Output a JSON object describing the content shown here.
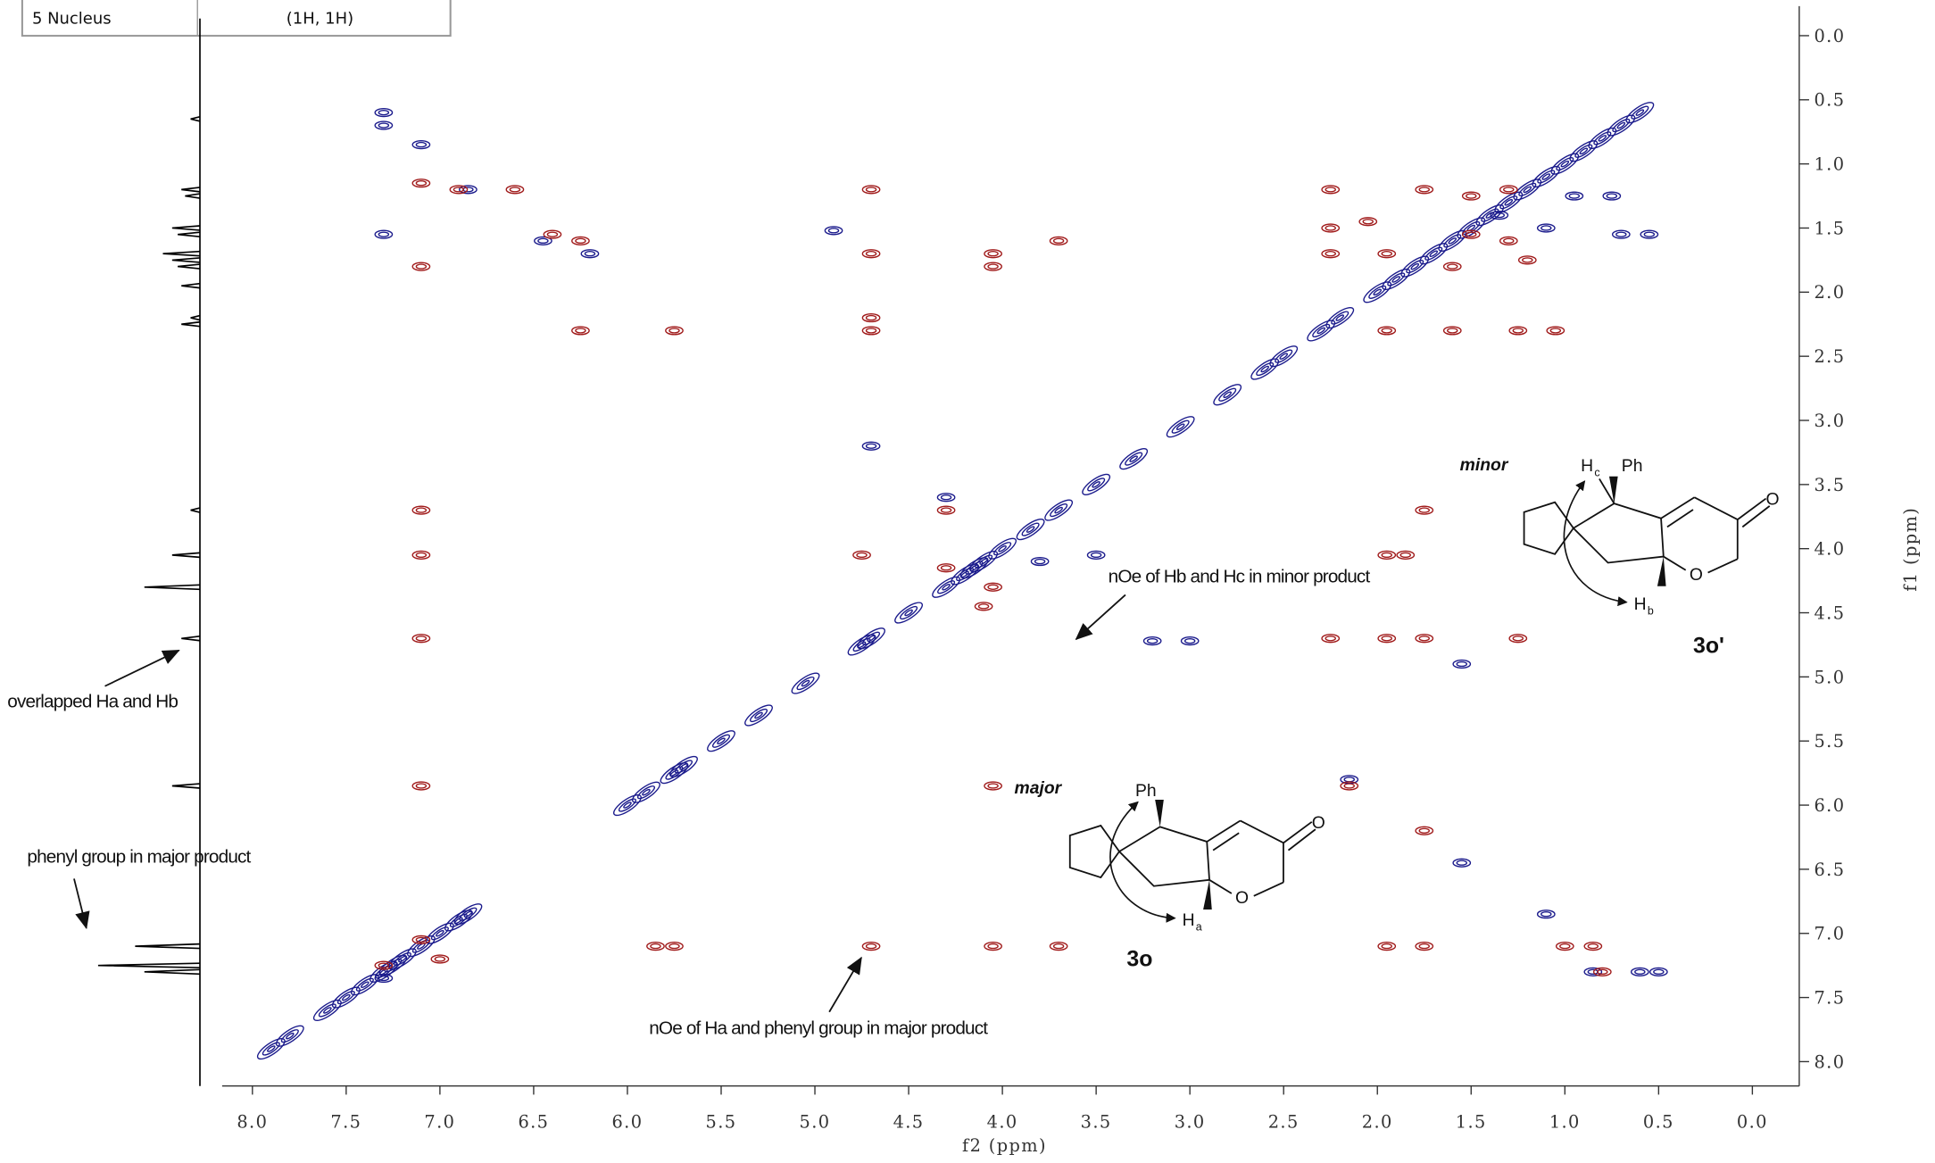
{
  "table": {
    "rows": [
      [
        "5 Nucleus",
        "(1H, 1H)"
      ]
    ]
  },
  "chart_data": {
    "type": "nmr2d",
    "xlabel": "f2 (ppm)",
    "ylabel": "f1 (ppm)",
    "xlim": [
      8.28,
      -0.25
    ],
    "ylim": [
      -0.23,
      8.19
    ],
    "xticks": [
      {
        "value": 8,
        "label": "8.0"
      },
      {
        "value": 7.5,
        "label": "7.5"
      },
      {
        "value": 7,
        "label": "7.0"
      },
      {
        "value": 6.5,
        "label": "6.5"
      },
      {
        "value": 6,
        "label": "6.0"
      },
      {
        "value": 5.5,
        "label": "5.5"
      },
      {
        "value": 5,
        "label": "5.0"
      },
      {
        "value": 4.5,
        "label": "4.5"
      },
      {
        "value": 4,
        "label": "4.0"
      },
      {
        "value": 3.5,
        "label": "3.5"
      },
      {
        "value": 3,
        "label": "3.0"
      },
      {
        "value": 2.5,
        "label": "2.5"
      },
      {
        "value": 2,
        "label": "2.0"
      },
      {
        "value": 1.5,
        "label": "1.5"
      },
      {
        "value": 1,
        "label": "1.0"
      },
      {
        "value": 0.5,
        "label": "0.5"
      },
      {
        "value": 0,
        "label": "0.0"
      }
    ],
    "yticks": [
      {
        "value": 0,
        "label": "0.0"
      },
      {
        "value": 0.5,
        "label": "0.5"
      },
      {
        "value": 1,
        "label": "1.0"
      },
      {
        "value": 1.5,
        "label": "1.5"
      },
      {
        "value": 2,
        "label": "2.0"
      },
      {
        "value": 2.5,
        "label": "2.5"
      },
      {
        "value": 3,
        "label": "3.0"
      },
      {
        "value": 3.5,
        "label": "3.5"
      },
      {
        "value": 4,
        "label": "4.0"
      },
      {
        "value": 4.5,
        "label": "4.5"
      },
      {
        "value": 5,
        "label": "5.0"
      },
      {
        "value": 5.5,
        "label": "5.5"
      },
      {
        "value": 6,
        "label": "6.0"
      },
      {
        "value": 6.5,
        "label": "6.5"
      },
      {
        "value": 7,
        "label": "7.0"
      },
      {
        "value": 7.5,
        "label": "7.5"
      },
      {
        "value": 8,
        "label": "8.0"
      }
    ],
    "series": [
      {
        "color": "#1b1b8c",
        "x": [
          7.9,
          7.8,
          7.6,
          7.5,
          7.4,
          7.3,
          7.25,
          7.2,
          7.1,
          7.0,
          6.9,
          6.85,
          6.0,
          5.9,
          5.75,
          5.7,
          5.5,
          5.3,
          5.05,
          4.75,
          4.7,
          4.5,
          4.3,
          4.2,
          4.15,
          4.1,
          4.0,
          3.85,
          3.7,
          3.5,
          3.3,
          3.05,
          2.8,
          2.6,
          2.5,
          2.3,
          2.2,
          2.0,
          1.9,
          1.8,
          1.7,
          1.6,
          1.5,
          1.4,
          1.3,
          1.2,
          1.1,
          1.0,
          0.9,
          0.8,
          0.7,
          0.6,
          7.3,
          7.3,
          7.1,
          6.85,
          6.45,
          6.2,
          4.9,
          7.3,
          4.7,
          1.55,
          1.55,
          0.85,
          0.6,
          0.5,
          1.1,
          2.15,
          3.2,
          3.0,
          0.7,
          0.55,
          0.95,
          0.75,
          3.8,
          3.5,
          4.3,
          7.3,
          1.35,
          1.1
        ],
        "y": [
          7.9,
          7.8,
          7.6,
          7.5,
          7.4,
          7.3,
          7.25,
          7.2,
          7.1,
          7.0,
          6.9,
          6.85,
          6.0,
          5.9,
          5.75,
          5.7,
          5.5,
          5.3,
          5.05,
          4.75,
          4.7,
          4.5,
          4.3,
          4.2,
          4.15,
          4.1,
          4.0,
          3.85,
          3.7,
          3.5,
          3.3,
          3.05,
          2.8,
          2.6,
          2.5,
          2.3,
          2.2,
          2.0,
          1.9,
          1.8,
          1.7,
          1.6,
          1.5,
          1.4,
          1.3,
          1.2,
          1.1,
          1.0,
          0.9,
          0.8,
          0.7,
          0.6,
          0.6,
          0.7,
          0.85,
          1.2,
          1.6,
          1.7,
          1.52,
          1.55,
          3.2,
          4.9,
          6.45,
          7.3,
          7.3,
          7.3,
          6.85,
          5.8,
          4.72,
          4.72,
          1.55,
          1.55,
          1.25,
          1.25,
          4.1,
          4.05,
          3.6,
          7.35,
          1.4,
          1.5
        ]
      },
      {
        "color": "#a01a1a",
        "x": [
          7.1,
          7.1,
          7.1,
          7.1,
          7.1,
          7.1,
          6.9,
          6.6,
          6.4,
          6.25,
          6.25,
          5.75,
          4.7,
          4.7,
          4.7,
          4.7,
          4.7,
          4.05,
          4.05,
          4.05,
          4.05,
          3.7,
          3.7,
          5.85,
          5.75,
          4.75,
          4.3,
          4.3,
          4.05,
          4.1,
          2.25,
          2.25,
          2.25,
          2.25,
          1.95,
          1.75,
          1.25,
          1.95,
          1.85,
          1.75,
          1.95,
          1.75,
          1.0,
          0.85,
          0.8,
          1.05,
          1.25,
          1.6,
          1.95,
          1.3,
          1.3,
          1.5,
          1.5,
          1.75,
          1.6,
          1.2,
          2.15,
          7.1,
          7.3,
          7.0,
          1.75,
          2.05,
          1.95
        ],
        "y": [
          1.15,
          1.8,
          3.7,
          4.05,
          4.7,
          5.85,
          1.2,
          1.2,
          1.55,
          1.6,
          2.3,
          2.3,
          1.2,
          1.7,
          2.2,
          2.3,
          7.1,
          1.7,
          1.8,
          5.85,
          7.1,
          1.6,
          7.1,
          7.1,
          7.1,
          4.05,
          4.15,
          3.7,
          4.3,
          4.45,
          1.2,
          1.5,
          1.7,
          4.7,
          4.7,
          4.7,
          4.7,
          4.05,
          4.05,
          3.7,
          7.1,
          7.1,
          7.1,
          7.1,
          7.3,
          2.3,
          2.3,
          2.3,
          2.3,
          1.6,
          1.2,
          1.25,
          1.55,
          1.2,
          1.8,
          1.75,
          5.85,
          7.05,
          7.25,
          7.2,
          6.2,
          1.45,
          1.7
        ]
      }
    ],
    "projection": {
      "color": "#000000",
      "shifts": [
        0.65,
        1.2,
        1.25,
        1.5,
        1.55,
        1.7,
        1.75,
        1.8,
        1.95,
        2.2,
        2.25,
        3.7,
        4.05,
        4.3,
        4.7,
        5.85,
        7.1,
        7.25,
        7.3
      ],
      "intensities": [
        0.05,
        0.1,
        0.08,
        0.15,
        0.12,
        0.2,
        0.15,
        0.12,
        0.1,
        0.05,
        0.1,
        0.05,
        0.15,
        0.3,
        0.1,
        0.15,
        0.35,
        0.55,
        0.3
      ]
    }
  },
  "annotations": [
    {
      "text": "overlapped Ha and Hb"
    },
    {
      "text": "phenyl group in major product"
    },
    {
      "text": "nOe of Ha and phenyl group in major product"
    },
    {
      "text": "nOe of Hb and Hc in minor product"
    }
  ],
  "structures": [
    {
      "tag": "minor",
      "compound": "3o'",
      "ph": "Ph",
      "h_top": {
        "text": "H",
        "sub": "c"
      },
      "h_bottom": {
        "text": "H",
        "sub": "b"
      },
      "ring_o": "O",
      "keto_o": "O"
    },
    {
      "tag": "major",
      "compound": "3o",
      "ph": "Ph",
      "h_bottom": {
        "text": "H",
        "sub": "a"
      },
      "ring_o": "O",
      "keto_o": "O"
    }
  ]
}
